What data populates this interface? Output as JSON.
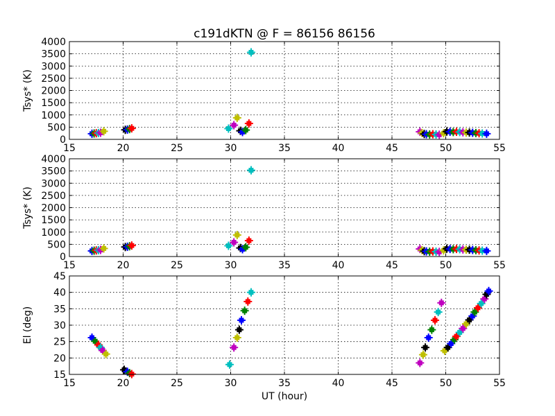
{
  "chart_data": {
    "title": "c191dKTN @ F = 86156 86156",
    "palette": {
      "blue": "#0000ff",
      "green": "#008000",
      "red": "#ff0000",
      "cyan": "#00bfbf",
      "magenta": "#bf00bf",
      "olive": "#bfbf00",
      "black": "#000000"
    },
    "panels": [
      {
        "type": "scatter",
        "ylabel": "Tsys* (K)",
        "xlabel": "",
        "xlim": [
          15,
          55
        ],
        "ylim": [
          0,
          4000
        ],
        "xticks": [
          "15",
          "20",
          "25",
          "30",
          "35",
          "40",
          "45",
          "50",
          "55"
        ],
        "yticks": [
          "0",
          "500",
          "1000",
          "1500",
          "2000",
          "2500",
          "3000",
          "3500",
          "4000"
        ],
        "grid": true,
        "points": [
          {
            "x": 17.1,
            "y": 230,
            "c": "blue"
          },
          {
            "x": 17.3,
            "y": 240,
            "c": "green"
          },
          {
            "x": 17.5,
            "y": 250,
            "c": "red"
          },
          {
            "x": 17.7,
            "y": 260,
            "c": "cyan"
          },
          {
            "x": 17.9,
            "y": 270,
            "c": "magenta"
          },
          {
            "x": 18.2,
            "y": 330,
            "c": "olive"
          },
          {
            "x": 20.2,
            "y": 390,
            "c": "black"
          },
          {
            "x": 20.4,
            "y": 400,
            "c": "blue"
          },
          {
            "x": 20.6,
            "y": 420,
            "c": "green"
          },
          {
            "x": 20.8,
            "y": 450,
            "c": "red"
          },
          {
            "x": 29.8,
            "y": 440,
            "c": "cyan"
          },
          {
            "x": 30.3,
            "y": 580,
            "c": "magenta"
          },
          {
            "x": 30.6,
            "y": 880,
            "c": "olive"
          },
          {
            "x": 30.9,
            "y": 350,
            "c": "black"
          },
          {
            "x": 31.1,
            "y": 300,
            "c": "blue"
          },
          {
            "x": 31.4,
            "y": 380,
            "c": "green"
          },
          {
            "x": 31.7,
            "y": 650,
            "c": "red"
          },
          {
            "x": 31.9,
            "y": 3560,
            "c": "cyan"
          },
          {
            "x": 47.6,
            "y": 310,
            "c": "magenta"
          },
          {
            "x": 47.8,
            "y": 260,
            "c": "olive"
          },
          {
            "x": 48.0,
            "y": 220,
            "c": "black"
          },
          {
            "x": 48.2,
            "y": 210,
            "c": "blue"
          },
          {
            "x": 48.5,
            "y": 200,
            "c": "green"
          },
          {
            "x": 48.8,
            "y": 210,
            "c": "red"
          },
          {
            "x": 49.1,
            "y": 200,
            "c": "cyan"
          },
          {
            "x": 49.4,
            "y": 190,
            "c": "magenta"
          },
          {
            "x": 49.8,
            "y": 250,
            "c": "olive"
          },
          {
            "x": 50.1,
            "y": 320,
            "c": "black"
          },
          {
            "x": 50.4,
            "y": 310,
            "c": "blue"
          },
          {
            "x": 50.7,
            "y": 300,
            "c": "green"
          },
          {
            "x": 51.0,
            "y": 310,
            "c": "red"
          },
          {
            "x": 51.3,
            "y": 300,
            "c": "cyan"
          },
          {
            "x": 51.6,
            "y": 290,
            "c": "magenta"
          },
          {
            "x": 51.9,
            "y": 280,
            "c": "olive"
          },
          {
            "x": 52.2,
            "y": 280,
            "c": "black"
          },
          {
            "x": 52.5,
            "y": 270,
            "c": "blue"
          },
          {
            "x": 52.8,
            "y": 260,
            "c": "green"
          },
          {
            "x": 53.1,
            "y": 250,
            "c": "red"
          },
          {
            "x": 53.4,
            "y": 240,
            "c": "cyan"
          },
          {
            "x": 53.8,
            "y": 230,
            "c": "blue"
          }
        ]
      },
      {
        "type": "scatter",
        "ylabel": "Tsys* (K)",
        "xlabel": "",
        "xlim": [
          15,
          55
        ],
        "ylim": [
          0,
          4000
        ],
        "xticks": [
          "15",
          "20",
          "25",
          "30",
          "35",
          "40",
          "45",
          "50",
          "55"
        ],
        "yticks": [
          "0",
          "500",
          "1000",
          "1500",
          "2000",
          "2500",
          "3000",
          "3500",
          "4000"
        ],
        "grid": true,
        "points": [
          {
            "x": 17.1,
            "y": 230,
            "c": "blue"
          },
          {
            "x": 17.3,
            "y": 240,
            "c": "green"
          },
          {
            "x": 17.5,
            "y": 250,
            "c": "red"
          },
          {
            "x": 17.7,
            "y": 260,
            "c": "cyan"
          },
          {
            "x": 17.9,
            "y": 270,
            "c": "magenta"
          },
          {
            "x": 18.2,
            "y": 330,
            "c": "olive"
          },
          {
            "x": 20.2,
            "y": 390,
            "c": "black"
          },
          {
            "x": 20.4,
            "y": 400,
            "c": "blue"
          },
          {
            "x": 20.6,
            "y": 420,
            "c": "green"
          },
          {
            "x": 20.8,
            "y": 450,
            "c": "red"
          },
          {
            "x": 29.8,
            "y": 440,
            "c": "cyan"
          },
          {
            "x": 30.3,
            "y": 580,
            "c": "magenta"
          },
          {
            "x": 30.6,
            "y": 880,
            "c": "olive"
          },
          {
            "x": 30.9,
            "y": 350,
            "c": "black"
          },
          {
            "x": 31.1,
            "y": 300,
            "c": "blue"
          },
          {
            "x": 31.4,
            "y": 380,
            "c": "green"
          },
          {
            "x": 31.7,
            "y": 650,
            "c": "red"
          },
          {
            "x": 31.9,
            "y": 3530,
            "c": "cyan"
          },
          {
            "x": 47.6,
            "y": 310,
            "c": "magenta"
          },
          {
            "x": 47.8,
            "y": 260,
            "c": "olive"
          },
          {
            "x": 48.0,
            "y": 220,
            "c": "black"
          },
          {
            "x": 48.2,
            "y": 210,
            "c": "blue"
          },
          {
            "x": 48.5,
            "y": 200,
            "c": "green"
          },
          {
            "x": 48.8,
            "y": 210,
            "c": "red"
          },
          {
            "x": 49.1,
            "y": 200,
            "c": "cyan"
          },
          {
            "x": 49.4,
            "y": 190,
            "c": "magenta"
          },
          {
            "x": 49.8,
            "y": 250,
            "c": "olive"
          },
          {
            "x": 50.1,
            "y": 320,
            "c": "black"
          },
          {
            "x": 50.4,
            "y": 310,
            "c": "blue"
          },
          {
            "x": 50.7,
            "y": 300,
            "c": "green"
          },
          {
            "x": 51.0,
            "y": 310,
            "c": "red"
          },
          {
            "x": 51.3,
            "y": 300,
            "c": "cyan"
          },
          {
            "x": 51.6,
            "y": 290,
            "c": "magenta"
          },
          {
            "x": 51.9,
            "y": 280,
            "c": "olive"
          },
          {
            "x": 52.2,
            "y": 280,
            "c": "black"
          },
          {
            "x": 52.5,
            "y": 270,
            "c": "blue"
          },
          {
            "x": 52.8,
            "y": 260,
            "c": "green"
          },
          {
            "x": 53.1,
            "y": 250,
            "c": "red"
          },
          {
            "x": 53.4,
            "y": 240,
            "c": "cyan"
          },
          {
            "x": 53.8,
            "y": 230,
            "c": "blue"
          }
        ]
      },
      {
        "type": "scatter",
        "ylabel": "El (deg)",
        "xlabel": "UT (hour)",
        "xlim": [
          15,
          55
        ],
        "ylim": [
          15,
          45
        ],
        "xticks": [
          "15",
          "20",
          "25",
          "30",
          "35",
          "40",
          "45",
          "50",
          "55"
        ],
        "yticks": [
          "15",
          "20",
          "25",
          "30",
          "35",
          "40",
          "45"
        ],
        "grid": true,
        "points": [
          {
            "x": 17.1,
            "y": 26.2,
            "c": "blue"
          },
          {
            "x": 17.4,
            "y": 25.1,
            "c": "green"
          },
          {
            "x": 17.7,
            "y": 24.0,
            "c": "red"
          },
          {
            "x": 17.9,
            "y": 23.2,
            "c": "cyan"
          },
          {
            "x": 18.1,
            "y": 22.3,
            "c": "magenta"
          },
          {
            "x": 18.4,
            "y": 21.2,
            "c": "olive"
          },
          {
            "x": 20.1,
            "y": 16.4,
            "c": "black"
          },
          {
            "x": 20.4,
            "y": 15.8,
            "c": "blue"
          },
          {
            "x": 20.6,
            "y": 15.4,
            "c": "green"
          },
          {
            "x": 20.8,
            "y": 15.1,
            "c": "red"
          },
          {
            "x": 29.9,
            "y": 18.0,
            "c": "cyan"
          },
          {
            "x": 30.3,
            "y": 23.2,
            "c": "magenta"
          },
          {
            "x": 30.6,
            "y": 26.2,
            "c": "olive"
          },
          {
            "x": 30.8,
            "y": 28.6,
            "c": "black"
          },
          {
            "x": 31.0,
            "y": 31.5,
            "c": "blue"
          },
          {
            "x": 31.3,
            "y": 34.4,
            "c": "green"
          },
          {
            "x": 31.6,
            "y": 37.2,
            "c": "red"
          },
          {
            "x": 31.9,
            "y": 40.0,
            "c": "cyan"
          },
          {
            "x": 47.6,
            "y": 18.5,
            "c": "magenta"
          },
          {
            "x": 47.9,
            "y": 21.0,
            "c": "olive"
          },
          {
            "x": 48.1,
            "y": 23.2,
            "c": "black"
          },
          {
            "x": 48.4,
            "y": 26.2,
            "c": "blue"
          },
          {
            "x": 48.7,
            "y": 28.6,
            "c": "green"
          },
          {
            "x": 49.0,
            "y": 31.5,
            "c": "red"
          },
          {
            "x": 49.3,
            "y": 34.0,
            "c": "cyan"
          },
          {
            "x": 49.6,
            "y": 36.8,
            "c": "magenta"
          },
          {
            "x": 49.9,
            "y": 22.2,
            "c": "olive"
          },
          {
            "x": 50.2,
            "y": 23.2,
            "c": "black"
          },
          {
            "x": 50.5,
            "y": 24.4,
            "c": "blue"
          },
          {
            "x": 50.8,
            "y": 25.6,
            "c": "green"
          },
          {
            "x": 51.0,
            "y": 26.6,
            "c": "red"
          },
          {
            "x": 51.3,
            "y": 27.8,
            "c": "cyan"
          },
          {
            "x": 51.6,
            "y": 29.0,
            "c": "magenta"
          },
          {
            "x": 51.9,
            "y": 30.4,
            "c": "olive"
          },
          {
            "x": 52.2,
            "y": 31.6,
            "c": "black"
          },
          {
            "x": 52.5,
            "y": 32.8,
            "c": "blue"
          },
          {
            "x": 52.7,
            "y": 34.0,
            "c": "green"
          },
          {
            "x": 53.0,
            "y": 35.3,
            "c": "red"
          },
          {
            "x": 53.3,
            "y": 36.6,
            "c": "cyan"
          },
          {
            "x": 53.6,
            "y": 38.0,
            "c": "magenta"
          },
          {
            "x": 53.8,
            "y": 39.4,
            "c": "black"
          },
          {
            "x": 54.0,
            "y": 40.4,
            "c": "blue"
          }
        ]
      }
    ]
  }
}
